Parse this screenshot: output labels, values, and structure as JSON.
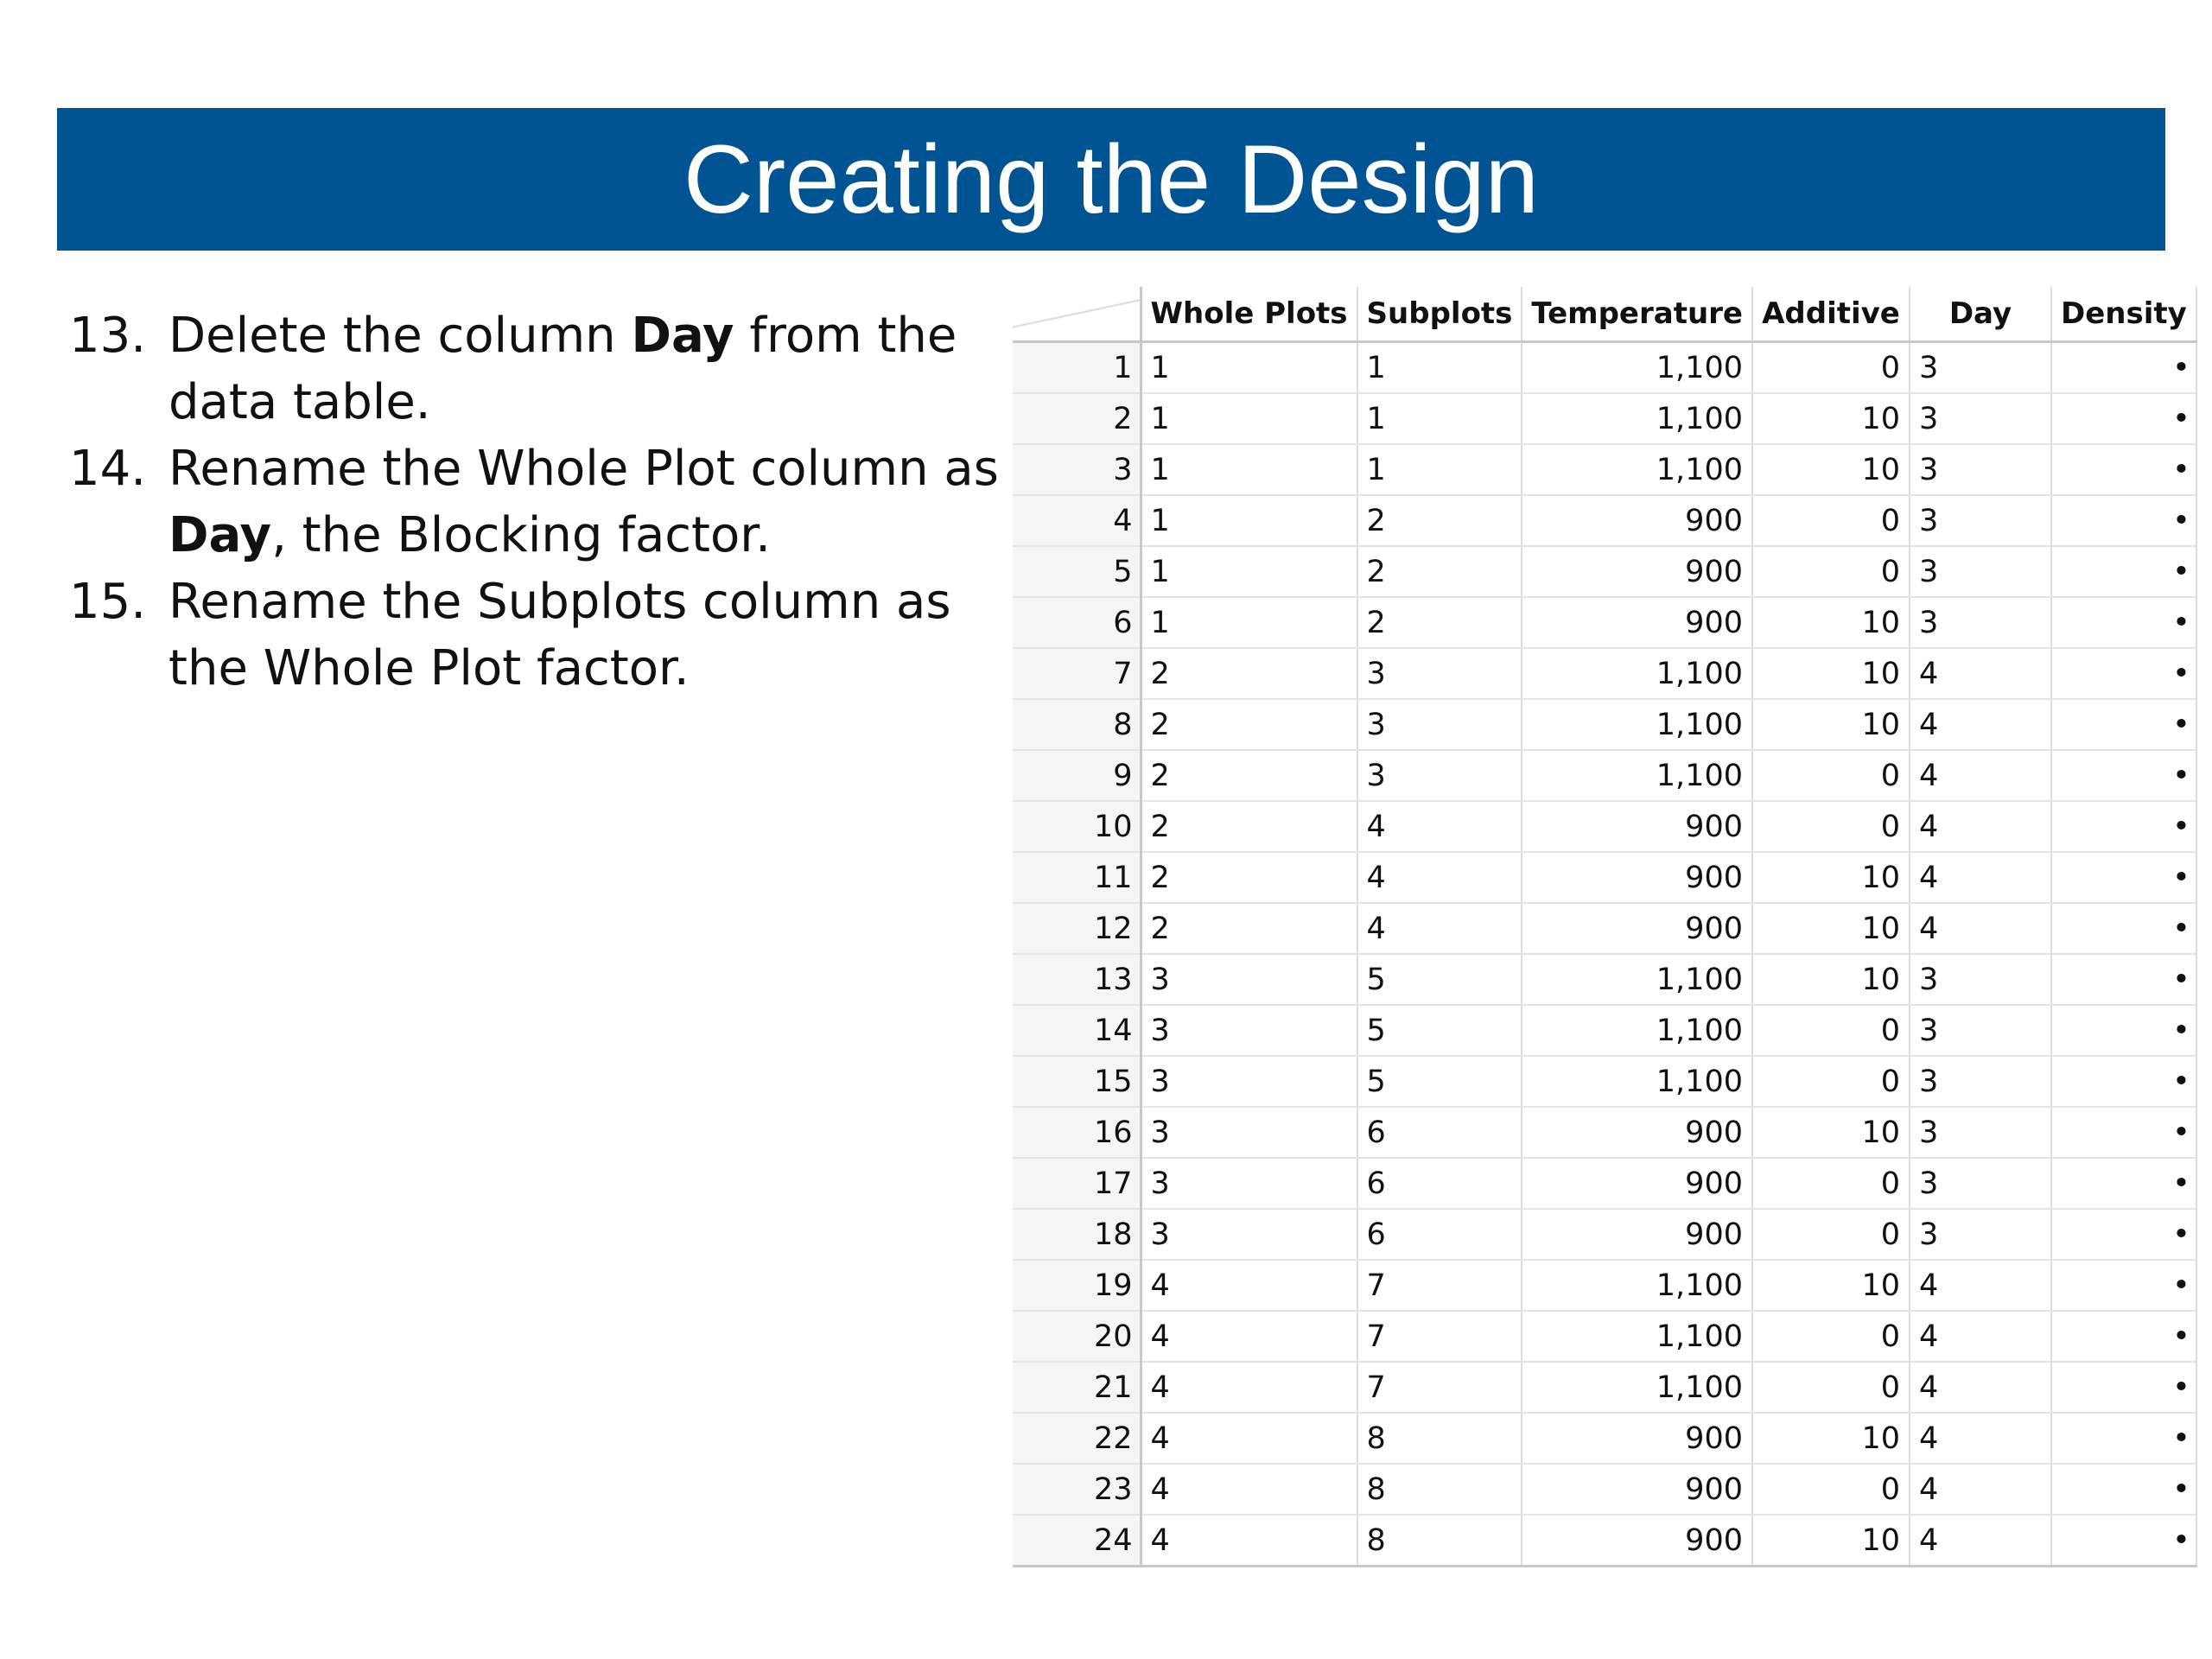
{
  "title": "Creating the Design",
  "steps": [
    {
      "num": "13.",
      "parts": [
        {
          "text": "Delete the column ",
          "bold": false
        },
        {
          "text": "Day",
          "bold": true
        },
        {
          "text": " from the data table.",
          "bold": false
        }
      ]
    },
    {
      "num": "14.",
      "parts": [
        {
          "text": "Rename the Whole Plot column as ",
          "bold": false
        },
        {
          "text": "Day",
          "bold": true
        },
        {
          "text": ", the Blocking factor.",
          "bold": false
        }
      ]
    },
    {
      "num": "15.",
      "parts": [
        {
          "text": "Rename the Subplots column as the Whole Plot factor.",
          "bold": false
        }
      ]
    }
  ],
  "table": {
    "columns": [
      "Whole Plots",
      "Subplots",
      "Temperature",
      "Additive",
      "Day",
      "Density"
    ],
    "rows": [
      [
        "1",
        "1",
        "1,100",
        "0",
        "3",
        "•"
      ],
      [
        "1",
        "1",
        "1,100",
        "10",
        "3",
        "•"
      ],
      [
        "1",
        "1",
        "1,100",
        "10",
        "3",
        "•"
      ],
      [
        "1",
        "2",
        "900",
        "0",
        "3",
        "•"
      ],
      [
        "1",
        "2",
        "900",
        "0",
        "3",
        "•"
      ],
      [
        "1",
        "2",
        "900",
        "10",
        "3",
        "•"
      ],
      [
        "2",
        "3",
        "1,100",
        "10",
        "4",
        "•"
      ],
      [
        "2",
        "3",
        "1,100",
        "10",
        "4",
        "•"
      ],
      [
        "2",
        "3",
        "1,100",
        "0",
        "4",
        "•"
      ],
      [
        "2",
        "4",
        "900",
        "0",
        "4",
        "•"
      ],
      [
        "2",
        "4",
        "900",
        "10",
        "4",
        "•"
      ],
      [
        "2",
        "4",
        "900",
        "10",
        "4",
        "•"
      ],
      [
        "3",
        "5",
        "1,100",
        "10",
        "3",
        "•"
      ],
      [
        "3",
        "5",
        "1,100",
        "0",
        "3",
        "•"
      ],
      [
        "3",
        "5",
        "1,100",
        "0",
        "3",
        "•"
      ],
      [
        "3",
        "6",
        "900",
        "10",
        "3",
        "•"
      ],
      [
        "3",
        "6",
        "900",
        "0",
        "3",
        "•"
      ],
      [
        "3",
        "6",
        "900",
        "0",
        "3",
        "•"
      ],
      [
        "4",
        "7",
        "1,100",
        "10",
        "4",
        "•"
      ],
      [
        "4",
        "7",
        "1,100",
        "0",
        "4",
        "•"
      ],
      [
        "4",
        "7",
        "1,100",
        "0",
        "4",
        "•"
      ],
      [
        "4",
        "8",
        "900",
        "10",
        "4",
        "•"
      ],
      [
        "4",
        "8",
        "900",
        "0",
        "4",
        "•"
      ],
      [
        "4",
        "8",
        "900",
        "10",
        "4",
        "•"
      ]
    ]
  }
}
